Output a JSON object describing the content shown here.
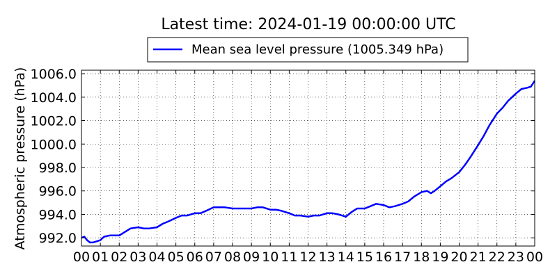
{
  "chart_data": {
    "type": "line",
    "title": "Latest time: 2024-01-19 00:00:00 UTC",
    "xlabel": "",
    "ylabel": "Atmospheric pressure (hPa)",
    "x_tick_labels": [
      "00",
      "01",
      "02",
      "03",
      "04",
      "05",
      "06",
      "07",
      "08",
      "09",
      "10",
      "11",
      "12",
      "13",
      "14",
      "15",
      "16",
      "17",
      "18",
      "19",
      "20",
      "21",
      "22",
      "23",
      "00"
    ],
    "y_ticks": [
      992.0,
      994.0,
      996.0,
      998.0,
      1000.0,
      1002.0,
      1004.0,
      1006.0
    ],
    "y_tick_labels": [
      "992.0",
      "994.0",
      "996.0",
      "998.0",
      "1000.0",
      "1002.0",
      "1004.0",
      "1006.0"
    ],
    "xlim": [
      0,
      24
    ],
    "ylim": [
      991.3,
      1006.3
    ],
    "grid": true,
    "legend_position": "top-center",
    "line_color": "#0000ff",
    "series": [
      {
        "name": "Mean sea level pressure (1005.349 hPa)",
        "x": [
          0,
          0.15,
          0.3,
          0.45,
          0.6,
          0.8,
          1.0,
          1.2,
          1.5,
          1.8,
          2.0,
          2.2,
          2.4,
          2.6,
          3.0,
          3.3,
          3.6,
          4.0,
          4.3,
          4.6,
          5.0,
          5.3,
          5.6,
          6.0,
          6.3,
          6.6,
          7.0,
          7.3,
          7.6,
          8.0,
          8.3,
          8.6,
          9.0,
          9.3,
          9.6,
          10.0,
          10.3,
          10.6,
          11.0,
          11.3,
          11.6,
          12.0,
          12.3,
          12.6,
          13.0,
          13.3,
          13.6,
          13.8,
          14.0,
          14.3,
          14.6,
          15.0,
          15.3,
          15.6,
          16.0,
          16.3,
          16.6,
          17.0,
          17.3,
          17.6,
          18.0,
          18.3,
          18.5,
          18.7,
          19.0,
          19.3,
          19.6,
          20.0,
          20.3,
          20.6,
          21.0,
          21.3,
          21.6,
          22.0,
          22.3,
          22.6,
          23.0,
          23.3,
          23.6,
          23.8,
          24.0
        ],
        "values": [
          992.0,
          992.1,
          991.8,
          991.6,
          991.6,
          991.7,
          991.8,
          992.1,
          992.2,
          992.2,
          992.2,
          992.4,
          992.6,
          992.8,
          992.9,
          992.8,
          992.8,
          992.9,
          993.2,
          993.4,
          993.7,
          993.9,
          993.9,
          994.1,
          994.1,
          994.3,
          994.6,
          994.6,
          994.6,
          994.5,
          994.5,
          994.5,
          994.5,
          994.6,
          994.6,
          994.4,
          994.4,
          994.3,
          994.1,
          993.9,
          993.9,
          993.8,
          993.9,
          993.9,
          994.1,
          994.1,
          994.0,
          993.9,
          993.8,
          994.2,
          994.5,
          994.5,
          994.7,
          994.9,
          994.8,
          994.6,
          994.7,
          994.9,
          995.1,
          995.5,
          995.9,
          996.0,
          995.8,
          996.0,
          996.4,
          996.8,
          997.1,
          997.6,
          998.2,
          998.9,
          999.9,
          1000.7,
          1001.6,
          1002.6,
          1003.1,
          1003.7,
          1004.3,
          1004.7,
          1004.8,
          1004.9,
          1005.4
        ]
      }
    ]
  }
}
